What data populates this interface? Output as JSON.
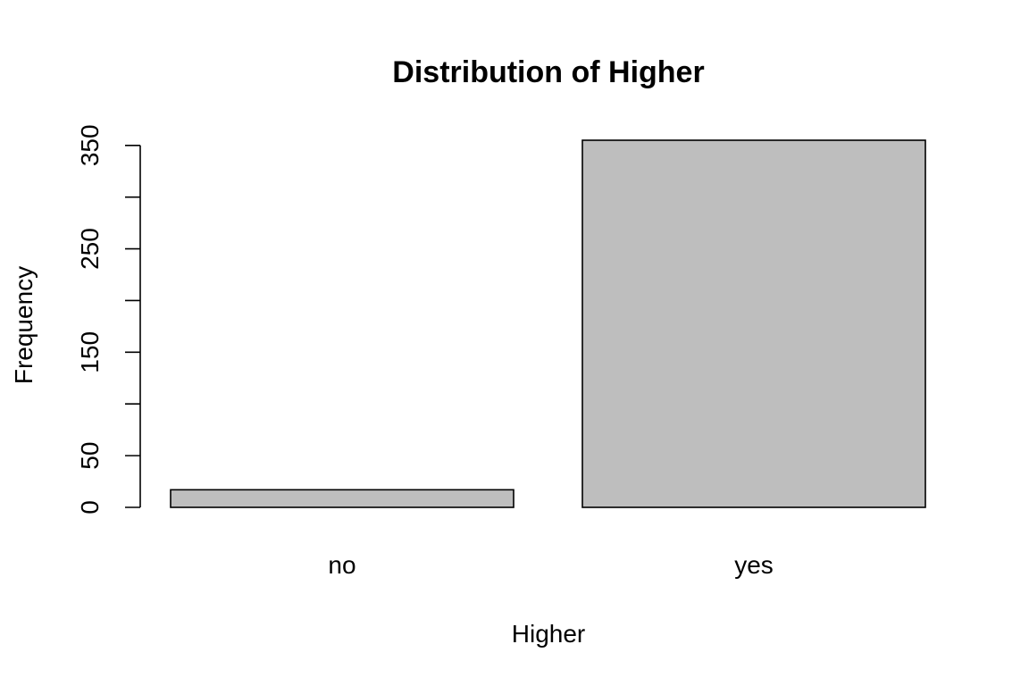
{
  "chart_data": {
    "type": "bar",
    "title": "Distribution of Higher",
    "xlabel": "Higher",
    "ylabel": "Frequency",
    "categories": [
      "no",
      "yes"
    ],
    "values": [
      17,
      355
    ],
    "ylim": [
      0,
      355
    ],
    "yticks": [
      0,
      50,
      150,
      250,
      350
    ],
    "yticks_minor": [
      100,
      200,
      300
    ],
    "bar_color": "#bebebe",
    "grid": false,
    "legend": "none"
  }
}
